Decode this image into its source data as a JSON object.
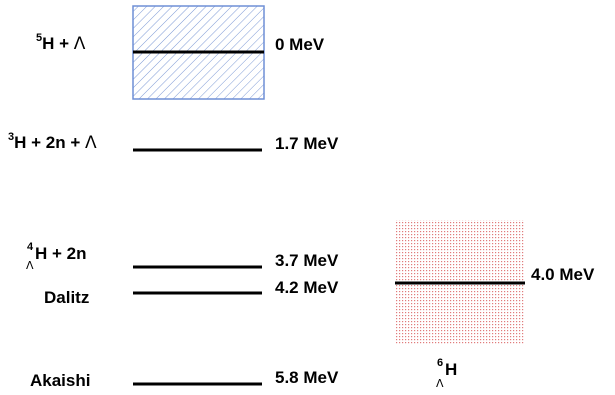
{
  "levels": [
    {
      "pre": "",
      "sup": "5",
      "sub": "",
      "core": "H + ",
      "lambda": "Λ",
      "post": "",
      "value": "0 MeV"
    },
    {
      "pre": "",
      "sup": "3",
      "sub": "",
      "core": "H + 2n + ",
      "lambda": "Λ",
      "post": "",
      "value": "1.7 MeV"
    },
    {
      "pre": "",
      "sup": "4",
      "sub": "Λ",
      "core": "H + 2n",
      "lambda": "",
      "post": "",
      "value": "3.7 MeV"
    },
    {
      "pre": "Dalitz",
      "value": "4.2 MeV"
    },
    {
      "pre": "Akaishi",
      "value": "5.8 MeV"
    }
  ],
  "hypernucleus": {
    "sup": "6",
    "sub": "Λ",
    "core": "H",
    "value": "4.0 MeV"
  },
  "colors": {
    "blue_box": "#7f9bd6",
    "red_box": "#e58a8a",
    "line": "#000000"
  }
}
